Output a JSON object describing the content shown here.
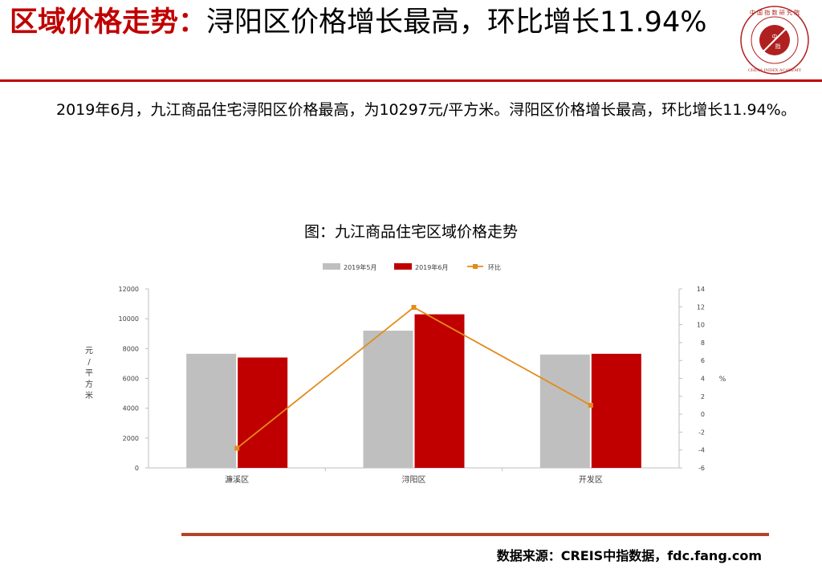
{
  "header": {
    "title_bold": "区域价格走势：",
    "title_rest": "浔阳区价格增长最高，环比增长11.94%",
    "logo_icon": "china-index-academy-seal",
    "logo_text_top": "中 国 指 数 研 究 院",
    "logo_text_bottom": "CHINA INDEX ACADEMY",
    "logo_center": "中 指",
    "accent_color": "#c00000"
  },
  "summary": {
    "text": "2019年6月，九江商品住宅浔阳区价格最高，为10297元/平方米。浔阳区价格增长最高，环比增长11.94%。"
  },
  "chart_title": "图：九江商品住宅区域价格走势",
  "chart_data": {
    "type": "bar",
    "categories": [
      "濂溪区",
      "浔阳区",
      "开发区"
    ],
    "series": [
      {
        "name": "2019年5月",
        "type": "bar",
        "axis": "left",
        "color": "#bfbfbf",
        "values": [
          7650,
          9200,
          7600
        ]
      },
      {
        "name": "2019年6月",
        "type": "bar",
        "axis": "left",
        "color": "#c00000",
        "values": [
          7400,
          10297,
          7650
        ]
      },
      {
        "name": "环比",
        "type": "line",
        "axis": "right",
        "color": "#e38b1a",
        "values": [
          -3.8,
          11.94,
          1.0
        ]
      }
    ],
    "ylabel": "元/平方米",
    "y2label": "%",
    "ylim": [
      0,
      12000
    ],
    "y2lim": [
      -6,
      14
    ],
    "yticks": [
      "0",
      "2000",
      "4000",
      "6000",
      "8000",
      "10000",
      "12000"
    ],
    "y2ticks": [
      "-6",
      "-4",
      "-2",
      "0",
      "2",
      "4",
      "6",
      "8",
      "10",
      "12",
      "14"
    ],
    "legend_position": "top",
    "grid": false
  },
  "footer": {
    "source": "数据来源：CREIS中指数据，fdc.fang.com"
  }
}
